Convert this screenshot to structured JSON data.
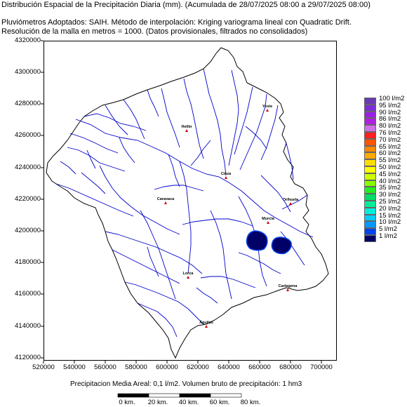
{
  "header": {
    "title": "Distribución Espacial de la Precipitación Diaria (mm). (Acumulada de 28/07/2025 08:00 a 29/07/2025 08:00)",
    "line1": "Pluviómetros Adoptados: SAIH.  Método de interpolación: Kriging variograma lineal con Quadratic Drift.",
    "line2": "Resolución de la malla en metros = 1000. (Datos provisionales, filtrados no consolidados)"
  },
  "axes": {
    "y_ticks": [
      "4320000",
      "4300000",
      "4280000",
      "4260000",
      "4240000",
      "4220000",
      "4200000",
      "4180000",
      "4160000",
      "4140000",
      "4120000"
    ],
    "x_ticks": [
      "520000",
      "540000",
      "560000",
      "580000",
      "600000",
      "620000",
      "640000",
      "660000",
      "680000",
      "700000"
    ]
  },
  "legend": {
    "items": [
      {
        "label": "100 l/m2",
        "color": "#6a3ab5"
      },
      {
        "label": "95 l/m2",
        "color": "#7d2fd4"
      },
      {
        "label": "90 l/m2",
        "color": "#9b1fe8"
      },
      {
        "label": "86 l/m2",
        "color": "#b020e0"
      },
      {
        "label": "80 l/m2",
        "color": "#d070e8"
      },
      {
        "label": "76 l/m2",
        "color": "#ff2020"
      },
      {
        "label": "70 l/m2",
        "color": "#ff5500"
      },
      {
        "label": "65 l/m2",
        "color": "#ff8800"
      },
      {
        "label": "60 l/m2",
        "color": "#ffaa00"
      },
      {
        "label": "55 l/m2",
        "color": "#ffdd00"
      },
      {
        "label": "50 l/m2",
        "color": "#ffff00"
      },
      {
        "label": "45 l/m2",
        "color": "#ccff00"
      },
      {
        "label": "40 l/m2",
        "color": "#88ff00"
      },
      {
        "label": "35 l/m2",
        "color": "#22ee22"
      },
      {
        "label": "30 l/m2",
        "color": "#00dd66"
      },
      {
        "label": "25 l/m2",
        "color": "#00ee99"
      },
      {
        "label": "20 l/m2",
        "color": "#00eedd"
      },
      {
        "label": "15 l/m2",
        "color": "#00ccff"
      },
      {
        "label": "10 l/m2",
        "color": "#0099ff"
      },
      {
        "label": "5 l/m2",
        "color": "#0044ee"
      },
      {
        "label": "1 l/m2",
        "color": "#000066"
      }
    ]
  },
  "footer": {
    "summary": "Precipitacion Media Areal: 0,1 l/m2. Volumen bruto de precipitación: 1 hm3",
    "scale_labels": [
      "0 km.",
      "20 km.",
      "40 km.",
      "60 km.",
      "80 km."
    ]
  },
  "cities": [
    {
      "name": "Yeste"
    },
    {
      "name": "Hellín"
    },
    {
      "name": "Cieza"
    },
    {
      "name": "Caravaca"
    },
    {
      "name": "Orihuela"
    },
    {
      "name": "Murcia"
    },
    {
      "name": "Lorca"
    },
    {
      "name": "Cartagena"
    },
    {
      "name": "Águilas"
    }
  ],
  "colors": {
    "river": "#0000cc",
    "rain_1": "#000066",
    "rain_5": "#0044ee"
  }
}
